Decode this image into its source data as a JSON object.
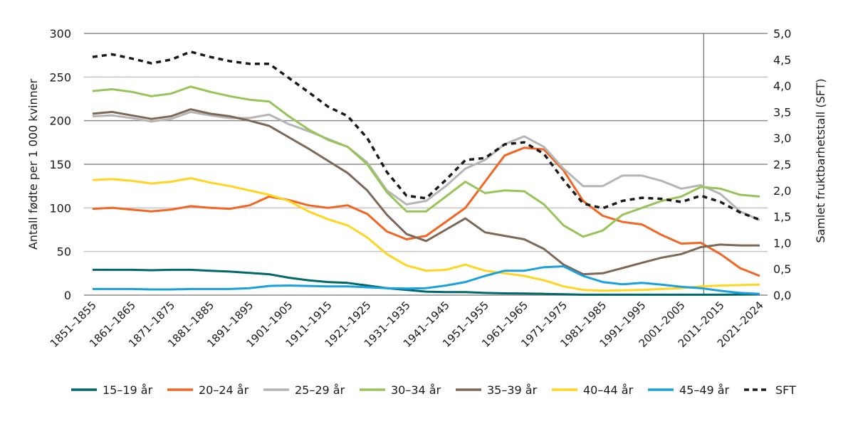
{
  "chart_data": {
    "type": "line",
    "title": "",
    "ylabel": "Antall fødte per 1 000 kvinner",
    "y2label": "Samlet fruktbarhetstall (SFT)",
    "ylim": [
      0,
      300
    ],
    "y2lim": [
      0,
      5
    ],
    "yticks": [
      "0",
      "50",
      "100",
      "150",
      "200",
      "250",
      "300"
    ],
    "y2ticks": [
      "0,0",
      "0,5",
      "1,0",
      "1,5",
      "2,0",
      "2,5",
      "3,0",
      "3,5",
      "4,0",
      "4,5",
      "5,0"
    ],
    "grid": true,
    "legend_position": "bottom",
    "reference_line_category": "2006–2010",
    "categories": [
      "1851–1855",
      "1856–1860",
      "1861–1865",
      "1866–1870",
      "1871–1875",
      "1876–1880",
      "1881–1885",
      "1886–1890",
      "1891–1895",
      "1896–1900",
      "1901–1905",
      "1906–1910",
      "1911–1915",
      "1916–1920",
      "1921–1925",
      "1926–1930",
      "1931–1935",
      "1936–1940",
      "1941–1945",
      "1946–1950",
      "1951–1955",
      "1956–1960",
      "1961–1965",
      "1966–1970",
      "1971–1975",
      "1976–1980",
      "1981–1985",
      "1986–1990",
      "1991–1995",
      "1996–2000",
      "2001–2005",
      "2006–2010",
      "2011–2015",
      "2016–2020",
      "2021–2024"
    ],
    "tick_labels": [
      "1851–1855",
      "1861–1865",
      "1871–1875",
      "1881–1885",
      "1891–1895",
      "1901–1905",
      "1911–1915",
      "1921–1925",
      "1931–1935",
      "1941–1945",
      "1951–1955",
      "1961–1965",
      "1971–1975",
      "1981–1985",
      "1991–1995",
      "2001–2005",
      "2011–2015",
      "2021–2024"
    ],
    "series": [
      {
        "name": "15–19 år",
        "axis": "left",
        "color": "#00676b",
        "dashed": false,
        "values": [
          29,
          29,
          29,
          28.5,
          29,
          29,
          28,
          27,
          25.5,
          24,
          20,
          17,
          15,
          14,
          11,
          8,
          6,
          4,
          3.5,
          3.5,
          2.5,
          2,
          1.8,
          1.5,
          1,
          0.5,
          0.5,
          0.5,
          0.5,
          0.5,
          0.5,
          0.5,
          0.5,
          0.7,
          1
        ]
      },
      {
        "name": "20–24 år",
        "axis": "left",
        "color": "#f26522",
        "dashed": false,
        "values": [
          99,
          100,
          98,
          96,
          98,
          102,
          100,
          99,
          103,
          113,
          109,
          103,
          100,
          103,
          93,
          73,
          64,
          68,
          84,
          100,
          130,
          160,
          169,
          167,
          143,
          108,
          91,
          84,
          81,
          69,
          59,
          60,
          47,
          31,
          22
        ]
      },
      {
        "name": "25–29 år",
        "axis": "left",
        "color": "#b5b5b5",
        "dashed": false,
        "values": [
          205,
          206,
          203,
          199,
          202,
          210,
          206,
          203,
          203,
          207,
          196,
          188,
          179,
          170,
          152,
          120,
          104,
          108,
          125,
          145,
          155,
          173,
          182,
          170,
          145,
          125,
          125,
          137,
          137,
          131,
          122,
          126,
          116,
          96,
          86
        ]
      },
      {
        "name": "30–34 år",
        "axis": "left",
        "color": "#97c459",
        "dashed": false,
        "values": [
          234,
          236,
          233,
          228,
          231,
          239,
          233,
          228,
          224,
          222,
          205,
          190,
          178,
          170,
          150,
          118,
          96,
          96,
          113,
          130,
          117,
          120,
          119,
          104,
          80,
          67,
          74,
          92,
          100,
          108,
          113,
          124,
          122,
          115,
          113
        ]
      },
      {
        "name": "35–39 år",
        "axis": "left",
        "color": "#7d6857",
        "dashed": false,
        "values": [
          208,
          210,
          206,
          202,
          205,
          213,
          208,
          205,
          200,
          194,
          181,
          168,
          154,
          140,
          120,
          92,
          70,
          62,
          75,
          88,
          72,
          68,
          64,
          53,
          35,
          24,
          25,
          31,
          37,
          43,
          47,
          55,
          58,
          57,
          57
        ]
      },
      {
        "name": "40–44 år",
        "axis": "left",
        "color": "#ffd520",
        "dashed": false,
        "values": [
          132,
          133,
          131,
          128,
          130,
          134,
          129,
          125,
          120,
          115,
          108,
          96,
          87,
          80,
          66,
          47,
          34,
          28,
          29,
          35,
          28,
          25,
          22,
          17,
          10,
          6,
          5,
          5.5,
          6,
          7,
          8,
          10,
          11,
          11.5,
          12
        ]
      },
      {
        "name": "45–49 år",
        "axis": "left",
        "color": "#1aa0dc",
        "dashed": false,
        "values": [
          7,
          7,
          7,
          6.5,
          6.5,
          7,
          7,
          7,
          8,
          10.5,
          11,
          10.5,
          10,
          10,
          9,
          8,
          7.5,
          8,
          11,
          15,
          22,
          28,
          28,
          32,
          33,
          22,
          15,
          12.5,
          14,
          12,
          9.5,
          8,
          5,
          2.5,
          1.5
        ]
      },
      {
        "name": "SFT",
        "axis": "right",
        "color": "#1a1a1a",
        "dashed": true,
        "values": [
          4.55,
          4.6,
          4.52,
          4.43,
          4.5,
          4.65,
          4.55,
          4.47,
          4.42,
          4.42,
          4.15,
          3.88,
          3.6,
          3.42,
          3.0,
          2.35,
          1.9,
          1.85,
          2.2,
          2.58,
          2.62,
          2.88,
          2.92,
          2.7,
          2.2,
          1.75,
          1.66,
          1.8,
          1.86,
          1.84,
          1.78,
          1.9,
          1.78,
          1.58,
          1.44
        ]
      }
    ]
  }
}
